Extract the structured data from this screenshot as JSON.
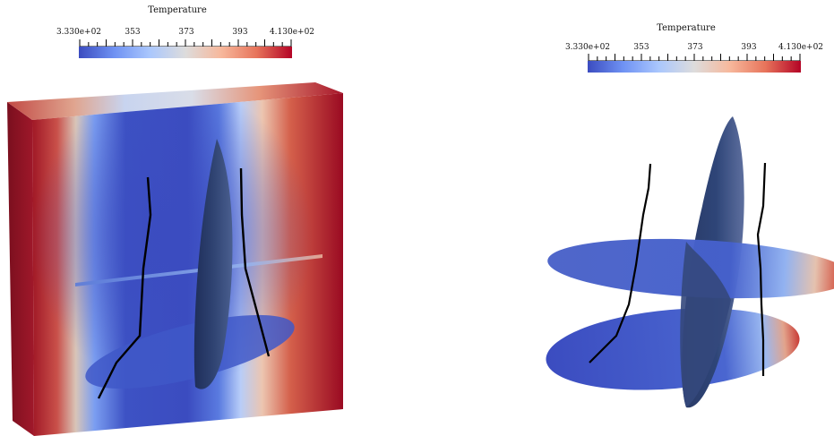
{
  "colorbar": {
    "title": "Temperature",
    "tick_labels": [
      "3.330e+02",
      "353",
      "373",
      "393",
      "4.130e+02"
    ],
    "min": 333,
    "max": 413,
    "colormap": [
      "#3b4cc0",
      "#6f92f3",
      "#aac7fd",
      "#dddcdc",
      "#f7b89c",
      "#e7745b",
      "#b40426"
    ]
  },
  "panels": [
    {
      "name": "box-view"
    },
    {
      "name": "slices-view"
    }
  ]
}
